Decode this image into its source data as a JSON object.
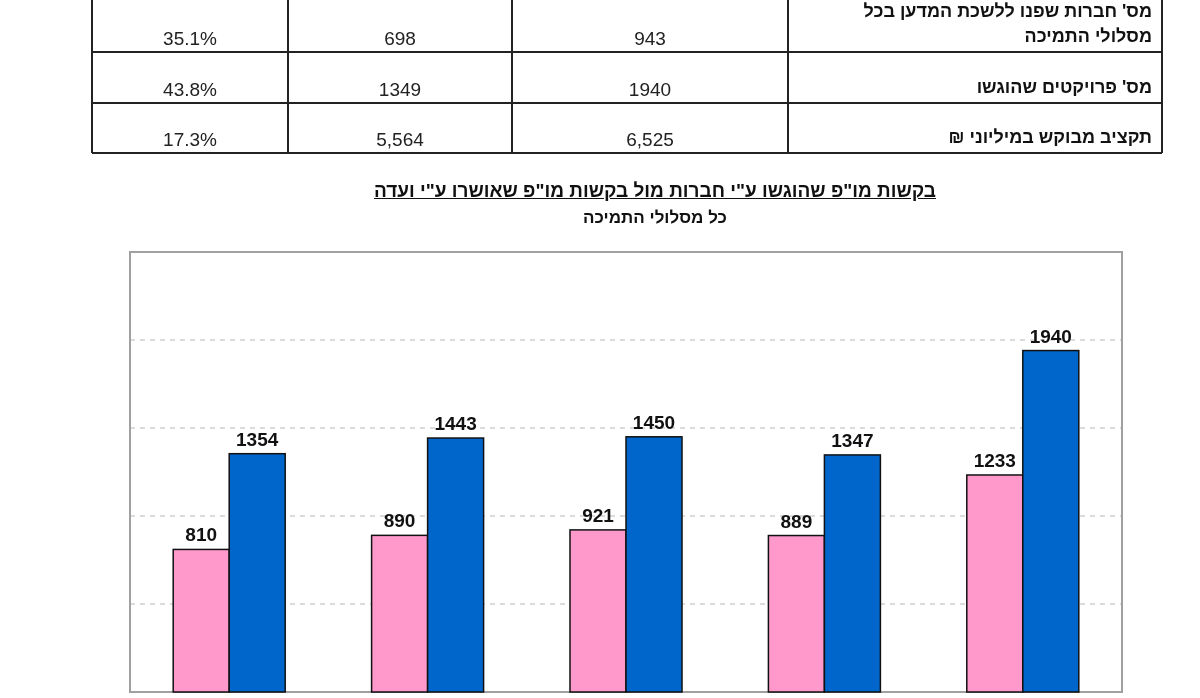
{
  "chart_data": [
    {
      "type": "other",
      "annotations": [
        "מס' חברות שפנו ללשכת המדען בכל מסלולי התמיכה",
        "943",
        "698",
        "35.1%",
        "מס' פרויקטים שהוגשו",
        "1940",
        "1349",
        "43.8%",
        "תקציב מבוקש במיליוני ₪",
        "6,525",
        "5,564",
        "17.3%"
      ]
    },
    {
      "type": "bar",
      "title": "בקשות מו\"פ שהוגשו ע\"י חברות מול בקשות מו\"פ שאושרו ע\"י ועדה",
      "subtitle": "כל מסלולי התמיכה",
      "categories": [
        null,
        null,
        null,
        null,
        null
      ],
      "series": [
        {
          "color": "#ff99cc",
          "values": [
            810,
            890,
            921,
            889,
            1233
          ]
        },
        {
          "color": "#0066cc",
          "values": [
            1354,
            1443,
            1450,
            1347,
            1940
          ]
        }
      ],
      "ylim": [
        0,
        2500
      ],
      "yticks": [
        {
          "value": 500,
          "label": null
        },
        {
          "value": 1000,
          "label": null
        },
        {
          "value": 1500,
          "label": null
        },
        {
          "value": 2000,
          "label": null
        }
      ],
      "grid": "y",
      "data_labels": true
    }
  ]
}
